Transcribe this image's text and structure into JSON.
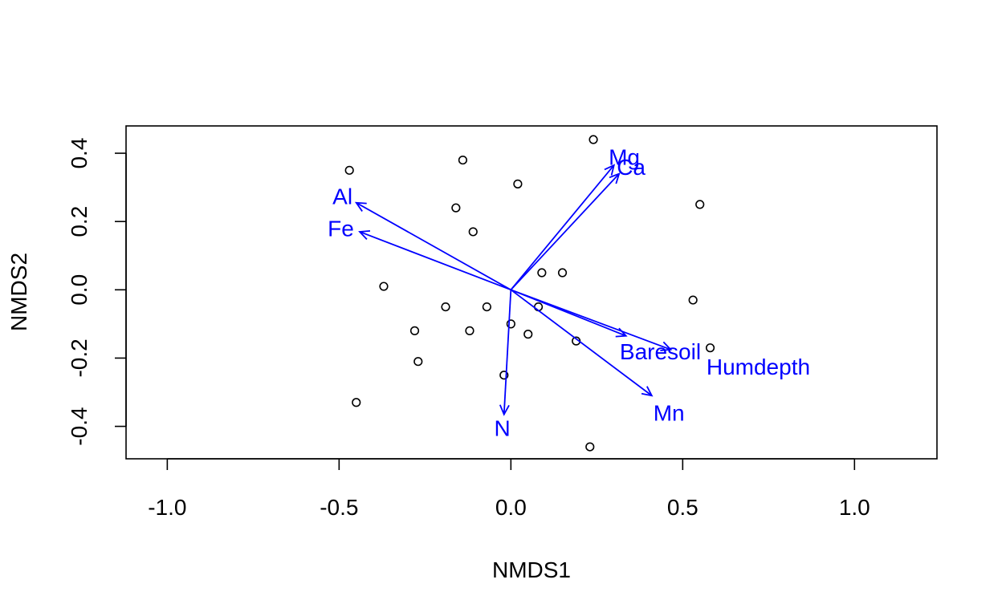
{
  "chart_data": {
    "type": "scatter",
    "title": "",
    "xlabel": "NMDS1",
    "ylabel": "NMDS2",
    "xlim": [
      -1.12,
      1.24
    ],
    "ylim": [
      -0.495,
      0.48
    ],
    "xticks": [
      -1.0,
      -0.5,
      0.0,
      0.5,
      1.0
    ],
    "xtick_labels": [
      "-1.0",
      "-0.5",
      "0.0",
      "0.5",
      "1.0"
    ],
    "yticks": [
      -0.4,
      -0.2,
      0.0,
      0.2,
      0.4
    ],
    "ytick_labels": [
      "-0.4",
      "-0.2",
      "0.0",
      "0.2",
      "0.4"
    ],
    "grid": false,
    "point_color": "#000000",
    "vector_color": "#0000ff",
    "points": [
      {
        "x": 0.24,
        "y": 0.44
      },
      {
        "x": -0.14,
        "y": 0.38
      },
      {
        "x": -0.47,
        "y": 0.35
      },
      {
        "x": 0.02,
        "y": 0.31
      },
      {
        "x": -0.16,
        "y": 0.24
      },
      {
        "x": 0.55,
        "y": 0.25
      },
      {
        "x": -0.11,
        "y": 0.17
      },
      {
        "x": 0.09,
        "y": 0.05
      },
      {
        "x": 0.15,
        "y": 0.05
      },
      {
        "x": -0.37,
        "y": 0.01
      },
      {
        "x": 0.53,
        "y": -0.03
      },
      {
        "x": -0.19,
        "y": -0.05
      },
      {
        "x": -0.07,
        "y": -0.05
      },
      {
        "x": 0.08,
        "y": -0.05
      },
      {
        "x": 0.0,
        "y": -0.1
      },
      {
        "x": -0.28,
        "y": -0.12
      },
      {
        "x": -0.12,
        "y": -0.12
      },
      {
        "x": 0.05,
        "y": -0.13
      },
      {
        "x": 0.19,
        "y": -0.15
      },
      {
        "x": 0.58,
        "y": -0.17
      },
      {
        "x": -0.27,
        "y": -0.21
      },
      {
        "x": -0.02,
        "y": -0.25
      },
      {
        "x": -0.45,
        "y": -0.33
      },
      {
        "x": 0.23,
        "y": -0.46
      }
    ],
    "vectors": [
      {
        "label": "Mg",
        "x": 0.3,
        "y": 0.365,
        "label_x": 0.33,
        "label_y": 0.39
      },
      {
        "label": "Ca",
        "x": 0.315,
        "y": 0.34,
        "label_x": 0.35,
        "label_y": 0.36
      },
      {
        "label": "Al",
        "x": -0.45,
        "y": 0.255,
        "label_x": -0.49,
        "label_y": 0.275
      },
      {
        "label": "Fe",
        "x": -0.44,
        "y": 0.17,
        "label_x": -0.495,
        "label_y": 0.18
      },
      {
        "label": "Baresoil",
        "x": 0.335,
        "y": -0.135,
        "label_x": 0.435,
        "label_y": -0.18
      },
      {
        "label": "Humdepth",
        "x": 0.465,
        "y": -0.175,
        "label_x": 0.72,
        "label_y": -0.225
      },
      {
        "label": "Mn",
        "x": 0.41,
        "y": -0.31,
        "label_x": 0.46,
        "label_y": -0.36
      },
      {
        "label": "N",
        "x": -0.02,
        "y": -0.365,
        "label_x": -0.025,
        "label_y": -0.405
      }
    ]
  }
}
